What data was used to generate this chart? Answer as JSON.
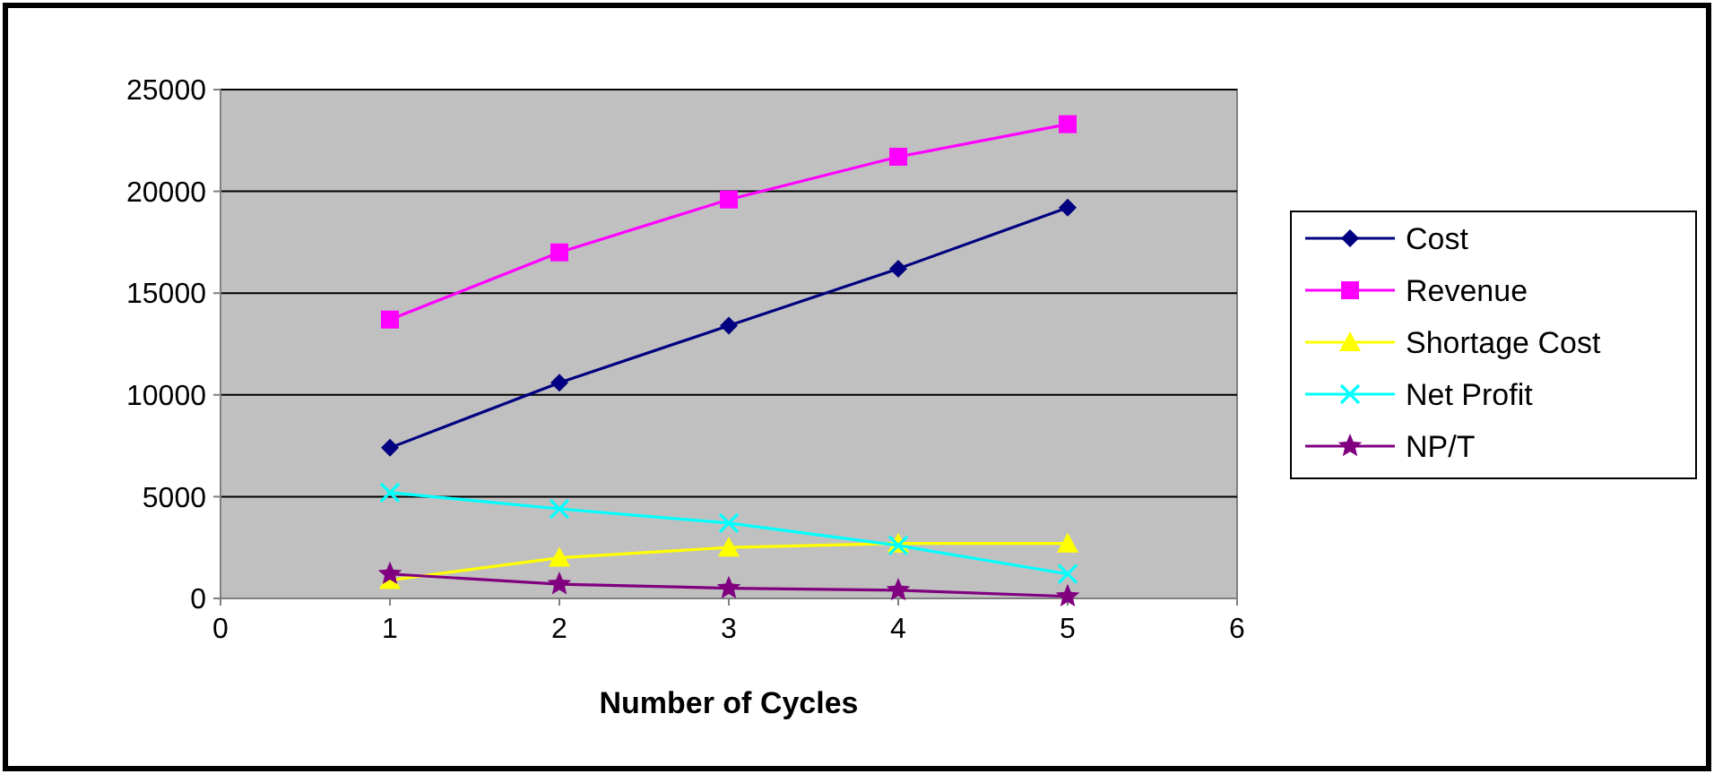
{
  "chart_data": {
    "type": "line",
    "xlabel": "Number of Cycles",
    "x": [
      1,
      2,
      3,
      4,
      5
    ],
    "xlim": [
      0,
      6
    ],
    "xticks": [
      0,
      1,
      2,
      3,
      4,
      5,
      6
    ],
    "ylim": [
      0,
      25000
    ],
    "yticks": [
      0,
      5000,
      10000,
      15000,
      20000,
      25000
    ],
    "grid": "y",
    "legend": "right",
    "series": [
      {
        "name": "Cost",
        "color": "#000080",
        "marker": "diamond",
        "values": [
          7400,
          10600,
          13400,
          16200,
          19200
        ]
      },
      {
        "name": "Revenue",
        "color": "#ff00ff",
        "marker": "square",
        "values": [
          13700,
          17000,
          19600,
          21700,
          23300
        ]
      },
      {
        "name": "Shortage Cost",
        "color": "#ffff00",
        "marker": "triangle",
        "values": [
          900,
          2000,
          2500,
          2700,
          2700
        ]
      },
      {
        "name": "Net Profit",
        "color": "#00ffff",
        "marker": "cross",
        "values": [
          5200,
          4400,
          3700,
          2600,
          1200
        ]
      },
      {
        "name": "NP/T",
        "color": "#800080",
        "marker": "star",
        "values": [
          1200,
          700,
          500,
          400,
          100
        ]
      }
    ]
  }
}
